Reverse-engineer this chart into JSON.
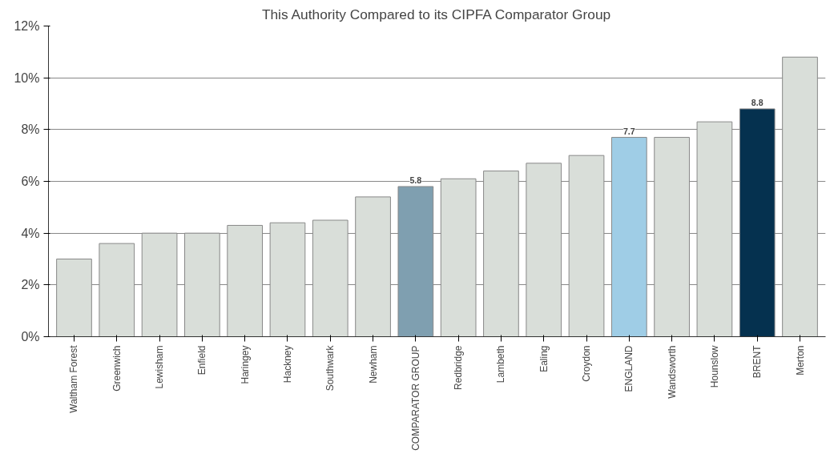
{
  "chart_data": {
    "type": "bar",
    "title": "This Authority Compared to its CIPFA Comparator Group",
    "categories": [
      "Waltham Forest",
      "Greenwich",
      "Lewisham",
      "Enfield",
      "Haringey",
      "Hackney",
      "Southwark",
      "Newham",
      "COMPARATOR GROUP",
      "Redbridge",
      "Lambeth",
      "Ealing",
      "Croydon",
      "ENGLAND",
      "Wandsworth",
      "Hounslow",
      "BRENT",
      "Merton"
    ],
    "values": [
      3.0,
      3.6,
      4.0,
      4.0,
      4.3,
      4.4,
      4.5,
      5.4,
      5.8,
      6.1,
      6.4,
      6.7,
      7.0,
      7.7,
      7.7,
      8.3,
      8.8,
      10.8
    ],
    "colors": [
      "#d9ded9",
      "#d9ded9",
      "#d9ded9",
      "#d9ded9",
      "#d9ded9",
      "#d9ded9",
      "#d9ded9",
      "#d9ded9",
      "#7f9fb0",
      "#d9ded9",
      "#d9ded9",
      "#d9ded9",
      "#d9ded9",
      "#9fcde6",
      "#d9ded9",
      "#d9ded9",
      "#05314f",
      "#d9ded9"
    ],
    "value_labels": [
      null,
      null,
      null,
      null,
      null,
      null,
      null,
      null,
      "5.8",
      null,
      null,
      null,
      null,
      "7.7",
      null,
      null,
      "8.8",
      null
    ],
    "ylim": [
      0,
      12
    ],
    "yticks": [
      {
        "value": 0,
        "label": "0%"
      },
      {
        "value": 2,
        "label": "2%"
      },
      {
        "value": 4,
        "label": "4%"
      },
      {
        "value": 6,
        "label": "6%"
      },
      {
        "value": 8,
        "label": "8%"
      },
      {
        "value": 10,
        "label": "10%"
      },
      {
        "value": 12,
        "label": "12%"
      }
    ],
    "grid": "y"
  }
}
